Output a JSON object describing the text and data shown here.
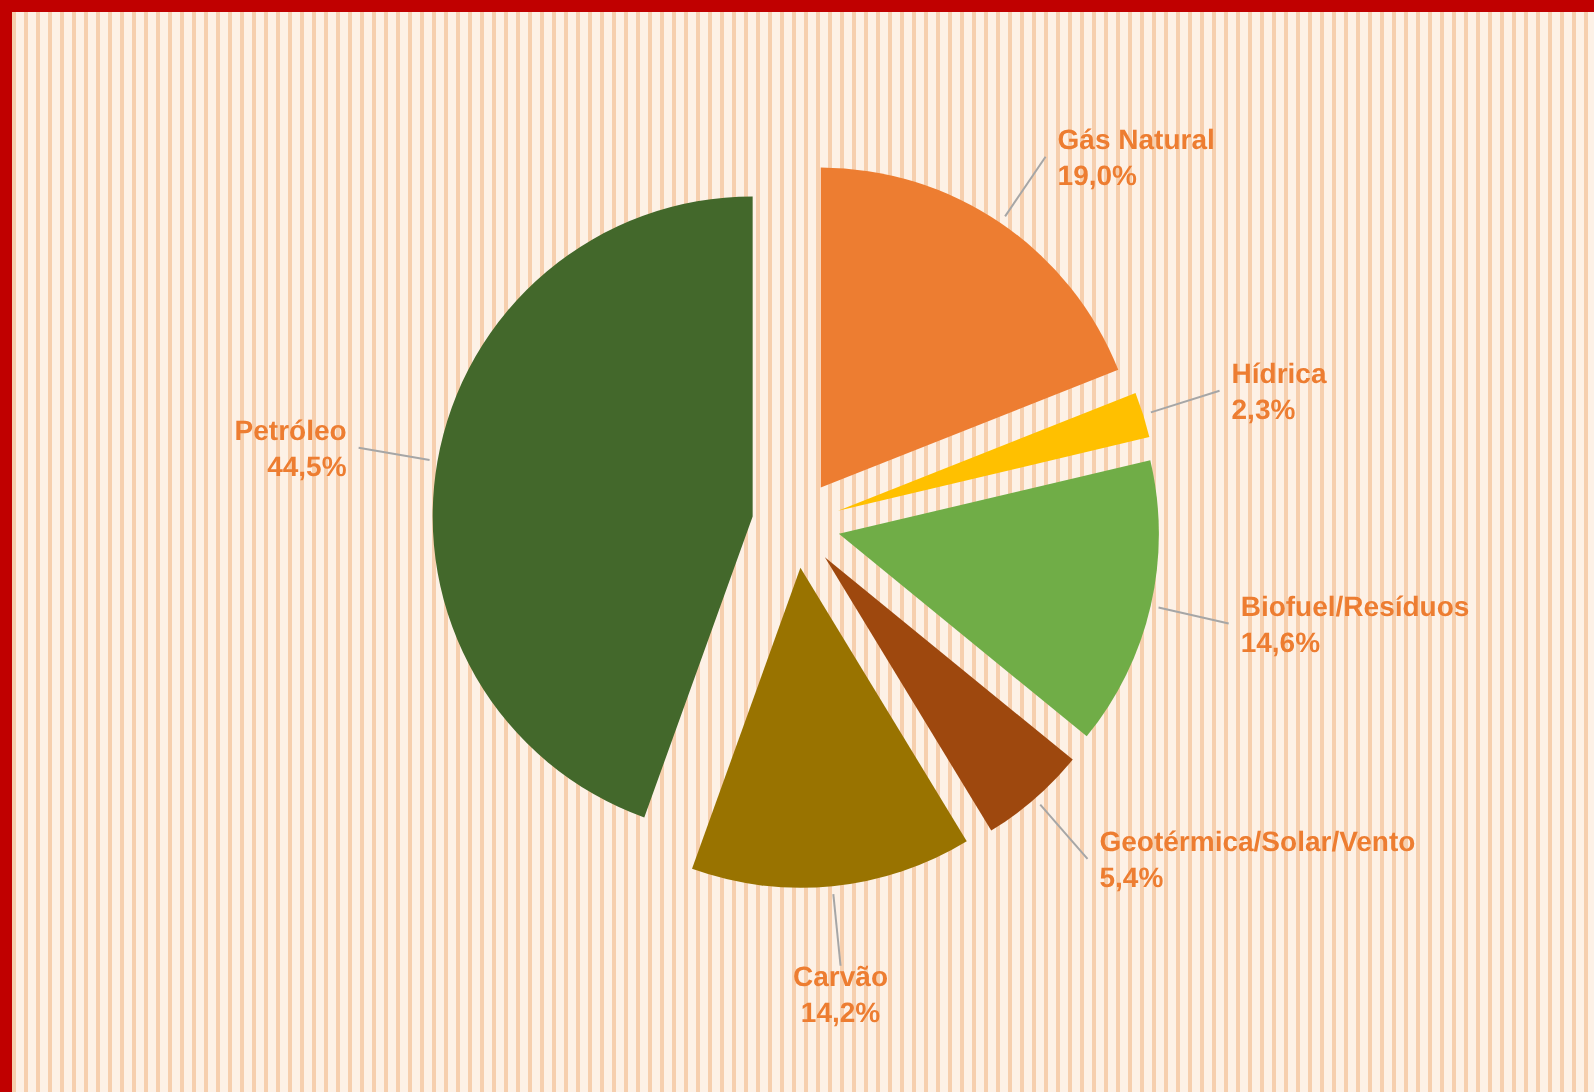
{
  "chart_data": {
    "type": "pie",
    "categories": [
      "Gás Natural",
      "Hídrica",
      "Biofuel/Resíduos",
      "Geotérmica/Solar/Vento",
      "Carvão",
      "Petróleo"
    ],
    "values": [
      19.0,
      2.3,
      14.6,
      5.4,
      14.2,
      44.5
    ],
    "colors": [
      "#ed7d31",
      "#ffc000",
      "#70ad47",
      "#9e480e",
      "#997300",
      "#43682b"
    ],
    "value_labels": [
      "19,0%",
      "2,3%",
      "14,6%",
      "5,4%",
      "14,2%",
      "44,5%"
    ],
    "legend": false
  }
}
